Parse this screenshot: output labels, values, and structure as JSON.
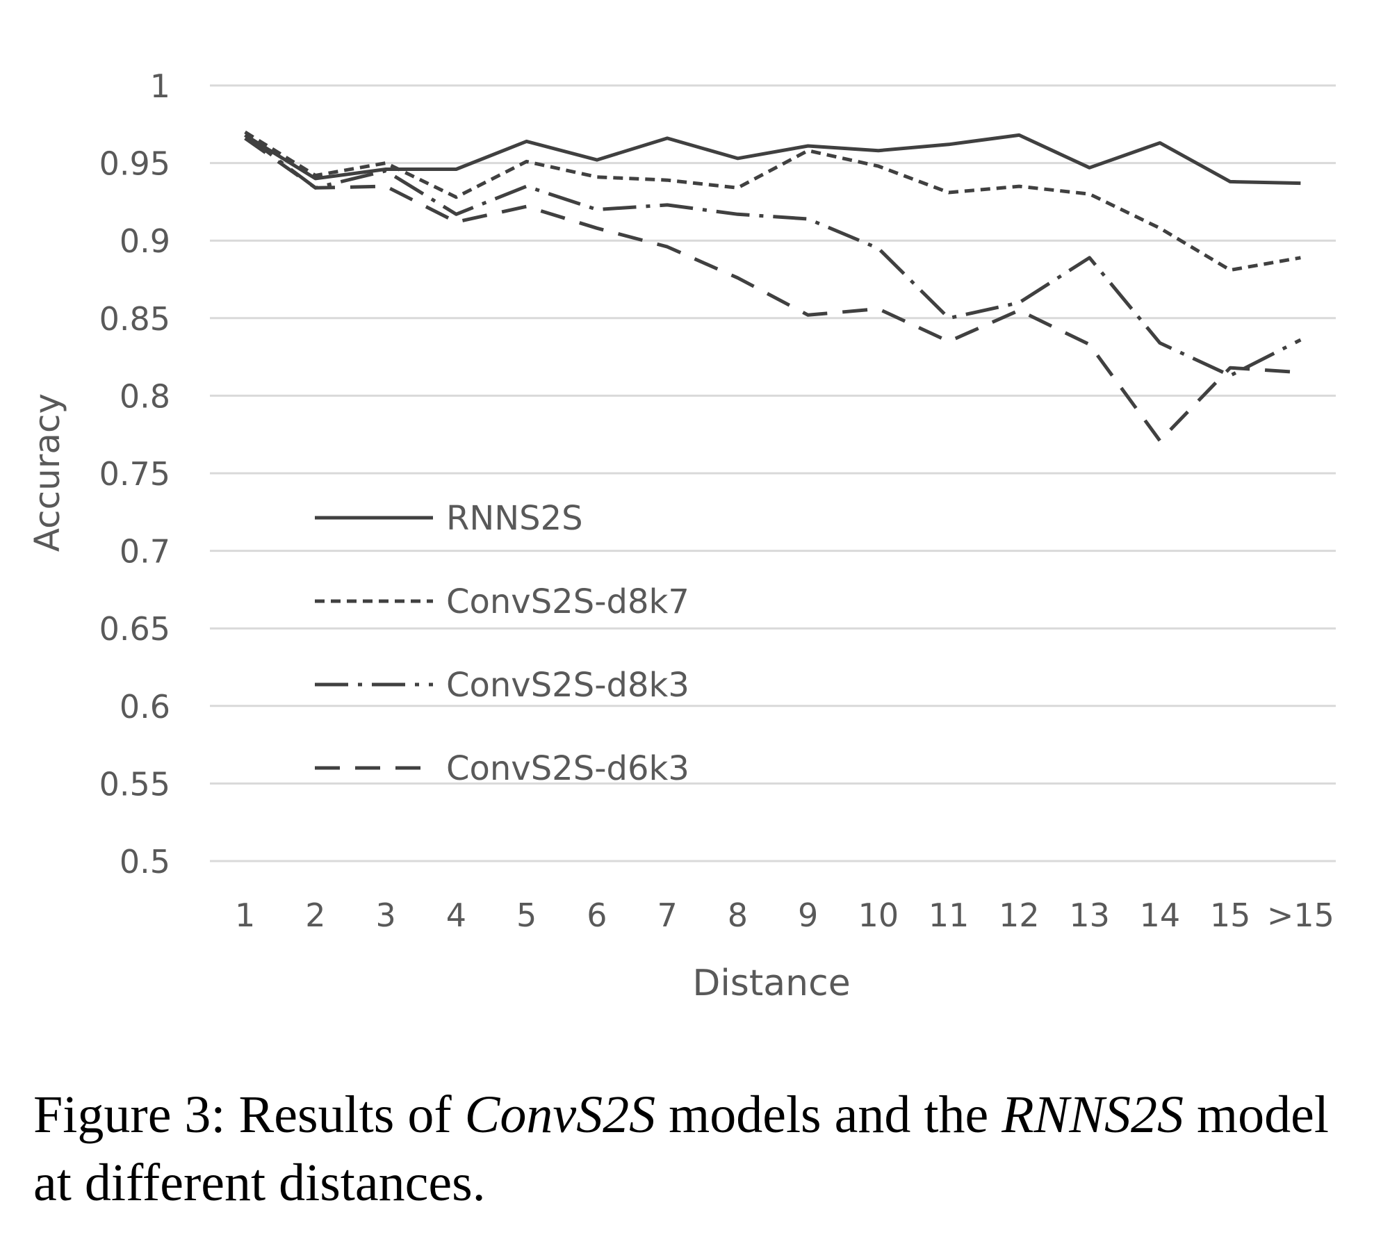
{
  "chart_data": {
    "type": "line",
    "title": "",
    "xlabel": "Distance",
    "ylabel": "Accuracy",
    "categories": [
      "1",
      "2",
      "3",
      "4",
      "5",
      "6",
      "7",
      "8",
      "9",
      "10",
      "11",
      "12",
      "13",
      "14",
      "15",
      ">15"
    ],
    "ylim": [
      0.5,
      1
    ],
    "yticks": [
      "0.5",
      "0.55",
      "0.6",
      "0.65",
      "0.7",
      "0.75",
      "0.8",
      "0.85",
      "0.9",
      "0.95",
      "1"
    ],
    "grid": true,
    "legend_position": "center-left",
    "series": [
      {
        "name": "RNNS2S",
        "dash": "solid",
        "values": [
          0.968,
          0.94,
          0.946,
          0.946,
          0.964,
          0.952,
          0.966,
          0.953,
          0.961,
          0.958,
          0.962,
          0.968,
          0.947,
          0.963,
          0.938,
          0.937
        ]
      },
      {
        "name": "ConvS2S-d8k7",
        "dash": "dotted",
        "values": [
          0.97,
          0.942,
          0.95,
          0.928,
          0.951,
          0.941,
          0.939,
          0.934,
          0.958,
          0.948,
          0.931,
          0.935,
          0.93,
          0.908,
          0.881,
          0.889
        ]
      },
      {
        "name": "ConvS2S-d8k3",
        "dash": "dashdot",
        "values": [
          0.968,
          0.934,
          0.945,
          0.917,
          0.935,
          0.92,
          0.923,
          0.917,
          0.914,
          0.895,
          0.85,
          0.86,
          0.889,
          0.834,
          0.813,
          0.836
        ]
      },
      {
        "name": "ConvS2S-d6k3",
        "dash": "dashed",
        "values": [
          0.966,
          0.934,
          0.935,
          0.912,
          0.922,
          0.908,
          0.896,
          0.876,
          0.852,
          0.856,
          0.835,
          0.855,
          0.833,
          0.771,
          0.818,
          0.815
        ]
      }
    ],
    "colors": {
      "lines": "#404040",
      "text": "#595959",
      "grid": "#d9d9d9"
    }
  },
  "caption": {
    "prefix": "Figure 3: Results of ",
    "model_a": "ConvS2S",
    "middle": " models and the ",
    "model_b": "RNNS2S",
    "suffix": " model at different distances."
  }
}
